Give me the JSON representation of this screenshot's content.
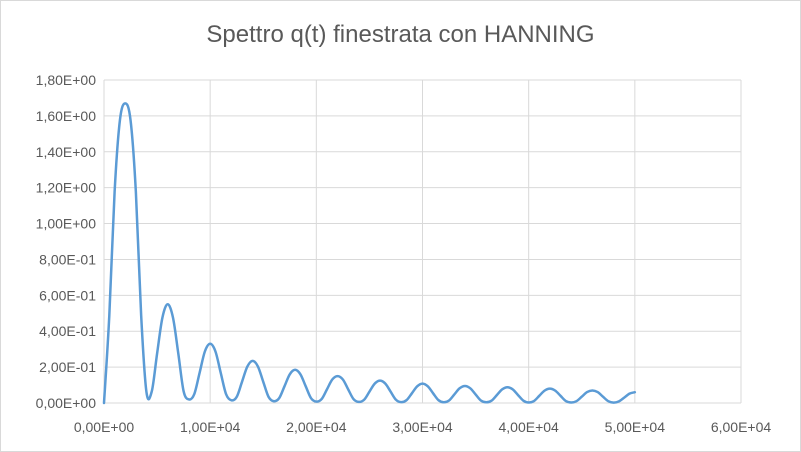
{
  "chart_data": {
    "type": "line",
    "title": "Spettro q(t) finestrata con HANNING",
    "xlabel": "",
    "ylabel": "",
    "xlim": [
      0,
      60000
    ],
    "ylim": [
      0,
      1.8
    ],
    "grid": "on",
    "legend": "none",
    "x_ticks": [
      "0,00E+00",
      "1,00E+04",
      "2,00E+04",
      "3,00E+04",
      "4,00E+04",
      "5,00E+04",
      "6,00E+04"
    ],
    "y_ticks": [
      "0,00E+00",
      "2,00E-01",
      "4,00E-01",
      "6,00E-01",
      "8,00E-01",
      "1,00E+00",
      "1,20E+00",
      "1,40E+00",
      "1,60E+00",
      "1,80E+00"
    ],
    "series": [
      {
        "color": "#5b9bd5",
        "x": [
          0,
          500,
          1000,
          1500,
          2000,
          2500,
          3000,
          3500,
          4000,
          4500,
          5000,
          5500,
          6000,
          6500,
          7000,
          7500,
          8000,
          8500,
          9000,
          9500,
          10000,
          10500,
          11000,
          11500,
          12000,
          12500,
          13000,
          13500,
          14000,
          14500,
          15000,
          15500,
          16000,
          16500,
          17000,
          17500,
          18000,
          18500,
          19000,
          19500,
          20000,
          20500,
          21000,
          21500,
          22000,
          22500,
          23000,
          23500,
          24000,
          24500,
          25000,
          25500,
          26000,
          26500,
          27000,
          27500,
          28000,
          28500,
          29000,
          29500,
          30000,
          30500,
          31000,
          31500,
          32000,
          32500,
          33000,
          33500,
          34000,
          34500,
          35000,
          35500,
          36000,
          36500,
          37000,
          37500,
          38000,
          38500,
          39000,
          39500,
          40000,
          40500,
          41000,
          41500,
          42000,
          42500,
          43000,
          43500,
          44000,
          44500,
          45000,
          45500,
          46000,
          46500,
          47000,
          47500,
          48000,
          48500,
          49000,
          49500,
          50000
        ],
        "y": [
          0.0,
          0.488,
          1.178,
          1.576,
          1.67,
          1.576,
          1.178,
          0.488,
          0.06,
          0.065,
          0.275,
          0.475,
          0.55,
          0.475,
          0.275,
          0.065,
          0.02,
          0.049,
          0.167,
          0.287,
          0.33,
          0.287,
          0.167,
          0.049,
          0.015,
          0.034,
          0.118,
          0.203,
          0.235,
          0.203,
          0.118,
          0.034,
          0.01,
          0.027,
          0.093,
          0.16,
          0.185,
          0.16,
          0.093,
          0.027,
          0.008,
          0.022,
          0.076,
          0.131,
          0.15,
          0.131,
          0.076,
          0.022,
          0.006,
          0.018,
          0.063,
          0.108,
          0.125,
          0.108,
          0.063,
          0.018,
          0.005,
          0.016,
          0.054,
          0.093,
          0.108,
          0.093,
          0.054,
          0.016,
          0.004,
          0.014,
          0.048,
          0.082,
          0.095,
          0.082,
          0.048,
          0.014,
          0.004,
          0.013,
          0.044,
          0.076,
          0.088,
          0.076,
          0.044,
          0.013,
          0.003,
          0.011,
          0.04,
          0.069,
          0.08,
          0.069,
          0.04,
          0.011,
          0.003,
          0.01,
          0.035,
          0.061,
          0.07,
          0.061,
          0.035,
          0.01,
          0.002,
          0.009,
          0.03,
          0.052,
          0.06
        ]
      }
    ]
  }
}
